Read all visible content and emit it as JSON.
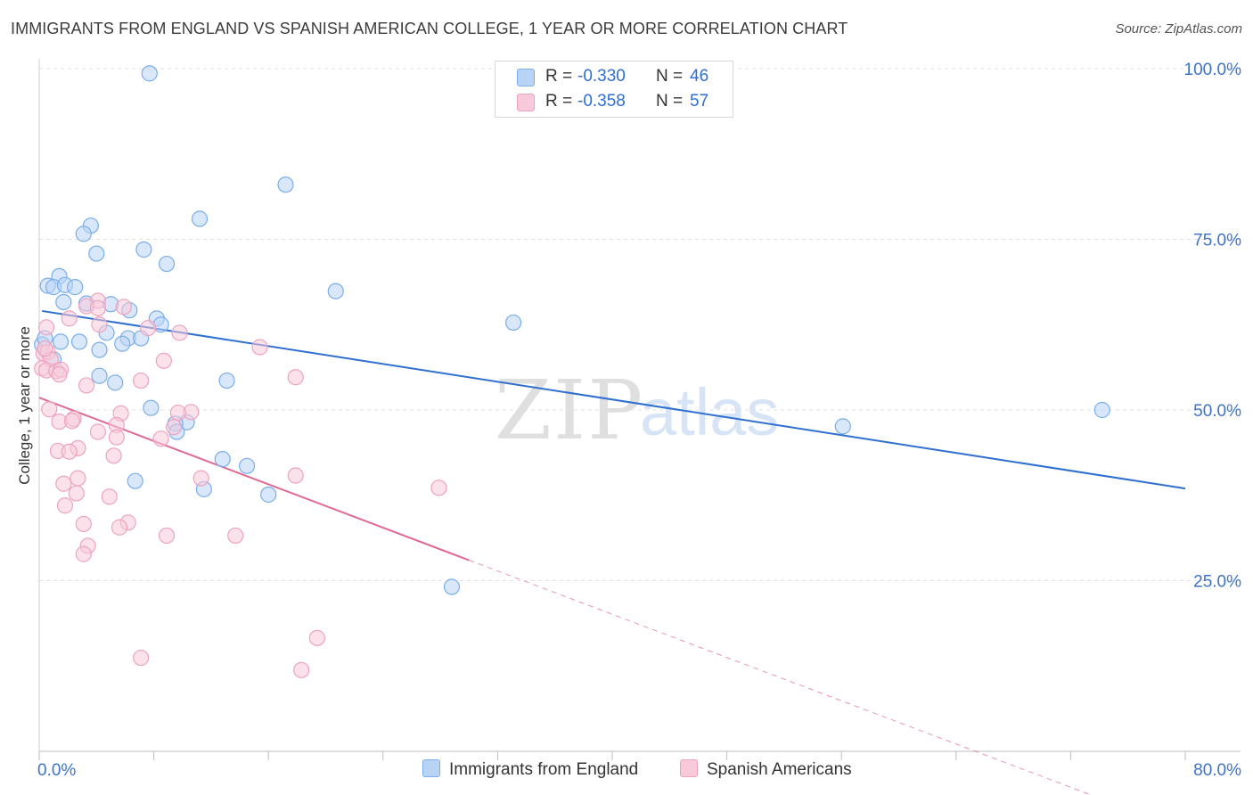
{
  "title": "IMMIGRANTS FROM ENGLAND VS SPANISH AMERICAN COLLEGE, 1 YEAR OR MORE CORRELATION CHART",
  "source": "Source: ZipAtlas.com",
  "watermark": {
    "zip": "ZIP",
    "atlas": "atlas"
  },
  "legend": {
    "r_label": "R =",
    "n_label": "N =",
    "series": [
      {
        "r": "-0.330",
        "n": "46"
      },
      {
        "r": "-0.358",
        "n": "57"
      }
    ]
  },
  "chart_data": {
    "type": "scatter",
    "title": "IMMIGRANTS FROM ENGLAND VS SPANISH AMERICAN COLLEGE, 1 YEAR OR MORE CORRELATION CHART",
    "xlabel": "",
    "ylabel": "College, 1 year or more",
    "xlim": [
      0,
      80
    ],
    "ylim": [
      0,
      100
    ],
    "x_tick_labels": [
      "0.0%",
      "80.0%"
    ],
    "y_tick_labels": [
      "100.0%",
      "75.0%",
      "50.0%",
      "25.0%"
    ],
    "y_ticks": [
      100,
      75,
      50,
      25
    ],
    "grid": true,
    "legend_position": "bottom",
    "series": [
      {
        "name": "Immigrants from England",
        "color": "#7aaeea",
        "fill": "#b9d3f5",
        "line_color": "#2e6fd1",
        "trend": {
          "x0": 0.2,
          "y0": 64.5,
          "x1": 80.0,
          "y1": 38.5
        },
        "points": [
          [
            7.7,
            99.3
          ],
          [
            17.2,
            83.0
          ],
          [
            11.2,
            78.0
          ],
          [
            3.6,
            77.0
          ],
          [
            3.1,
            75.8
          ],
          [
            7.3,
            73.5
          ],
          [
            4.0,
            72.9
          ],
          [
            8.9,
            71.4
          ],
          [
            0.6,
            68.2
          ],
          [
            1.4,
            69.6
          ],
          [
            1.0,
            68.0
          ],
          [
            1.8,
            68.3
          ],
          [
            2.5,
            68.0
          ],
          [
            20.7,
            67.4
          ],
          [
            1.7,
            65.8
          ],
          [
            3.3,
            65.6
          ],
          [
            5.0,
            65.5
          ],
          [
            6.3,
            64.6
          ],
          [
            8.2,
            63.4
          ],
          [
            8.5,
            62.5
          ],
          [
            33.1,
            62.8
          ],
          [
            4.7,
            61.3
          ],
          [
            6.2,
            60.5
          ],
          [
            7.1,
            60.5
          ],
          [
            1.5,
            60.0
          ],
          [
            2.8,
            60.0
          ],
          [
            5.8,
            59.7
          ],
          [
            0.2,
            59.6
          ],
          [
            4.2,
            58.8
          ],
          [
            1.0,
            57.4
          ],
          [
            4.2,
            55.0
          ],
          [
            13.1,
            54.3
          ],
          [
            5.3,
            54.0
          ],
          [
            7.8,
            50.3
          ],
          [
            74.2,
            50.0
          ],
          [
            10.3,
            48.2
          ],
          [
            9.5,
            48.0
          ],
          [
            9.6,
            46.8
          ],
          [
            56.1,
            47.6
          ],
          [
            12.8,
            42.8
          ],
          [
            14.5,
            41.8
          ],
          [
            6.7,
            39.6
          ],
          [
            11.5,
            38.4
          ],
          [
            16.0,
            37.6
          ],
          [
            28.8,
            24.1
          ],
          [
            0.4,
            60.5
          ]
        ]
      },
      {
        "name": "Spanish Americans",
        "color": "#eda3bf",
        "fill": "#f8cad9",
        "line_color": "#e06a94",
        "trend": {
          "x0": 0.0,
          "y0": 51.8,
          "x1": 30.0,
          "y1": 28.0
        },
        "trend_dashed": {
          "x0": 30.0,
          "y0": 28.0,
          "x1": 80.0,
          "y1": -11.6
        },
        "points": [
          [
            4.1,
            66.0
          ],
          [
            3.3,
            65.2
          ],
          [
            5.9,
            65.1
          ],
          [
            4.1,
            64.9
          ],
          [
            2.1,
            63.4
          ],
          [
            0.5,
            62.1
          ],
          [
            4.2,
            62.5
          ],
          [
            7.6,
            62.0
          ],
          [
            9.8,
            61.3
          ],
          [
            15.4,
            59.2
          ],
          [
            0.3,
            58.3
          ],
          [
            0.6,
            58.5
          ],
          [
            0.8,
            57.4
          ],
          [
            8.7,
            57.2
          ],
          [
            0.2,
            56.1
          ],
          [
            0.5,
            55.8
          ],
          [
            1.2,
            55.7
          ],
          [
            1.5,
            55.9
          ],
          [
            1.4,
            55.2
          ],
          [
            17.9,
            54.8
          ],
          [
            7.1,
            54.3
          ],
          [
            3.3,
            53.6
          ],
          [
            0.7,
            50.1
          ],
          [
            5.7,
            49.5
          ],
          [
            10.6,
            49.7
          ],
          [
            9.7,
            49.6
          ],
          [
            1.4,
            48.3
          ],
          [
            2.4,
            48.7
          ],
          [
            2.3,
            48.4
          ],
          [
            5.4,
            47.8
          ],
          [
            9.4,
            47.5
          ],
          [
            4.1,
            46.8
          ],
          [
            5.4,
            46.0
          ],
          [
            8.5,
            45.8
          ],
          [
            2.7,
            44.4
          ],
          [
            1.3,
            44.0
          ],
          [
            2.1,
            43.9
          ],
          [
            5.2,
            43.3
          ],
          [
            11.3,
            40.0
          ],
          [
            17.9,
            40.4
          ],
          [
            2.7,
            40.0
          ],
          [
            1.7,
            39.2
          ],
          [
            2.6,
            37.8
          ],
          [
            27.9,
            38.6
          ],
          [
            4.9,
            37.3
          ],
          [
            1.8,
            36.0
          ],
          [
            6.2,
            33.5
          ],
          [
            3.1,
            33.3
          ],
          [
            5.6,
            32.8
          ],
          [
            8.9,
            31.6
          ],
          [
            13.7,
            31.6
          ],
          [
            3.4,
            30.1
          ],
          [
            3.1,
            28.9
          ],
          [
            19.4,
            16.6
          ],
          [
            7.1,
            13.7
          ],
          [
            18.3,
            11.9
          ],
          [
            0.4,
            59.0
          ]
        ]
      }
    ]
  },
  "bottom_legend": {
    "items": [
      "Immigrants from England",
      "Spanish Americans"
    ]
  }
}
